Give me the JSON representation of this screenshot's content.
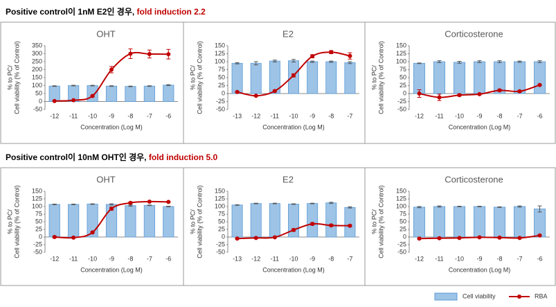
{
  "headings": [
    {
      "text": "Positive control이 1nM E2인 경우, ",
      "highlight": "fold induction 2.2"
    },
    {
      "text": "Positive control이 10nM OHT인 경우, ",
      "highlight": "fold induction 5.0"
    }
  ],
  "legend": [
    {
      "name": "Cell viability",
      "color": "#9dc3e6",
      "border": "#5b9bd5"
    },
    {
      "name": "RBA",
      "color": "#c00000"
    }
  ],
  "chart_data": [
    {
      "type": "bar_line",
      "title": "OHT",
      "ylabel": [
        "% to PC/",
        "Cell viability (% of Control)"
      ],
      "xlabel": "Concentration (Log M)",
      "categories": [
        "-12",
        "-11",
        "-10",
        "-9",
        "-8",
        "-7",
        "-6"
      ],
      "series": [
        {
          "kind": "bar",
          "color": "#9dc3e6",
          "values": [
            97,
            100,
            100,
            97,
            95,
            97,
            103
          ],
          "errors": [
            2,
            2,
            2,
            2,
            2,
            2,
            3
          ]
        },
        {
          "kind": "line",
          "color": "#c00000",
          "values": [
            3,
            8,
            35,
            200,
            300,
            298,
            297
          ],
          "errors": [
            2,
            2,
            5,
            20,
            30,
            25,
            30
          ]
        }
      ],
      "ylim": [
        -50,
        350
      ],
      "yticks": [
        -50,
        0,
        50,
        100,
        150,
        200,
        250,
        300,
        350
      ]
    },
    {
      "type": "bar_line",
      "title": "E2",
      "ylabel": [
        "% to PC/",
        "Cell viability (% of Control)"
      ],
      "xlabel": "Concentration (Log M)",
      "categories": [
        "-13",
        "-12",
        "-11",
        "-10",
        "-9",
        "-8",
        "-7"
      ],
      "series": [
        {
          "kind": "bar",
          "color": "#9dc3e6",
          "values": [
            95,
            95,
            102,
            103,
            100,
            100,
            97
          ],
          "errors": [
            2,
            5,
            3,
            4,
            2,
            2,
            3
          ]
        },
        {
          "kind": "line",
          "color": "#c00000",
          "values": [
            5,
            -7,
            8,
            57,
            117,
            130,
            118
          ],
          "errors": [
            2,
            2,
            3,
            5,
            5,
            5,
            10
          ]
        }
      ],
      "ylim": [
        -50,
        150
      ],
      "yticks": [
        -50,
        -25,
        0,
        25,
        50,
        75,
        100,
        125,
        150
      ]
    },
    {
      "type": "bar_line",
      "title": "Corticosterone",
      "ylabel": [
        "% to PC/",
        "Cell viability (% of Control)"
      ],
      "xlabel": "Concentration (Log M)",
      "categories": [
        "-12",
        "-11",
        "-10",
        "-9",
        "-8",
        "-7",
        "-6"
      ],
      "series": [
        {
          "kind": "bar",
          "color": "#9dc3e6",
          "values": [
            95,
            100,
            98,
            100,
            100,
            100,
            100
          ],
          "errors": [
            1,
            3,
            3,
            3,
            3,
            2,
            3
          ]
        },
        {
          "kind": "line",
          "color": "#c00000",
          "values": [
            0,
            -12,
            -5,
            -2,
            10,
            7,
            27
          ],
          "errors": [
            12,
            10,
            3,
            2,
            3,
            3,
            2
          ]
        }
      ],
      "ylim": [
        -50,
        150
      ],
      "yticks": [
        -50,
        -25,
        0,
        25,
        50,
        75,
        100,
        125,
        150
      ]
    },
    {
      "type": "bar_line",
      "title": "OHT",
      "ylabel": [
        "% to PC/",
        "Cell viability (% of Control)"
      ],
      "xlabel": "Concentration (Log M)",
      "categories": [
        "-12",
        "-11",
        "-10",
        "-9",
        "-8",
        "-7",
        "-6"
      ],
      "series": [
        {
          "kind": "bar",
          "color": "#9dc3e6",
          "values": [
            107,
            107,
            108,
            107,
            103,
            104,
            100
          ],
          "errors": [
            1,
            1,
            1,
            2,
            2,
            1,
            1
          ]
        },
        {
          "kind": "line",
          "color": "#c00000",
          "values": [
            0,
            -2,
            15,
            93,
            112,
            116,
            115
          ],
          "errors": [
            3,
            2,
            3,
            5,
            3,
            2,
            2
          ]
        }
      ],
      "ylim": [
        -50,
        150
      ],
      "yticks": [
        -50,
        -25,
        0,
        25,
        50,
        75,
        100,
        125,
        150
      ]
    },
    {
      "type": "bar_line",
      "title": "E2",
      "ylabel": [
        "% to PC/",
        "Cell viability (% of Control)"
      ],
      "xlabel": "Concentration (Log M)",
      "categories": [
        "-13",
        "-12",
        "-11",
        "-10",
        "-9",
        "-8",
        "-7"
      ],
      "series": [
        {
          "kind": "bar",
          "color": "#9dc3e6",
          "values": [
            105,
            110,
            110,
            108,
            110,
            112,
            97
          ],
          "errors": [
            1,
            1,
            1,
            1,
            1,
            2,
            2
          ]
        },
        {
          "kind": "line",
          "color": "#c00000",
          "values": [
            -5,
            -3,
            -1,
            23,
            43,
            38,
            37
          ],
          "errors": [
            2,
            2,
            2,
            4,
            4,
            3,
            3
          ]
        }
      ],
      "ylim": [
        -50,
        150
      ],
      "yticks": [
        -50,
        -25,
        0,
        25,
        50,
        75,
        100,
        125,
        150
      ]
    },
    {
      "type": "bar_line",
      "title": "Corticosterone",
      "ylabel": [
        "% to PC/",
        "Cell viability (% of Control)"
      ],
      "xlabel": "Concentration (Log M)",
      "categories": [
        "-12",
        "-11",
        "-10",
        "-9",
        "-8",
        "-7",
        "-6"
      ],
      "series": [
        {
          "kind": "bar",
          "color": "#9dc3e6",
          "values": [
            98,
            100,
            100,
            100,
            98,
            100,
            92
          ],
          "errors": [
            2,
            2,
            1,
            1,
            1,
            2,
            10
          ]
        },
        {
          "kind": "line",
          "color": "#c00000",
          "values": [
            -5,
            -4,
            -3,
            -1,
            -2,
            -3,
            5
          ],
          "errors": [
            2,
            2,
            2,
            2,
            2,
            2,
            2
          ]
        }
      ],
      "ylim": [
        -50,
        150
      ],
      "yticks": [
        -50,
        -25,
        0,
        25,
        50,
        75,
        100,
        125,
        150
      ]
    }
  ]
}
